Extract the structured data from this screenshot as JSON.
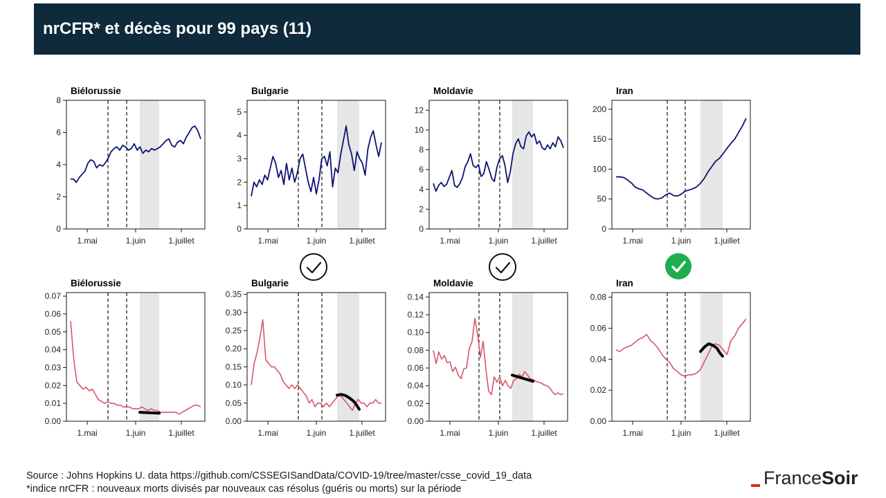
{
  "header": {
    "title": "nrCFR* et décès pour 99 pays (11)"
  },
  "footer": {
    "source": "Source : Johns Hopkins U. data https://github.com/CSSEGISandData/COVID-19/tree/master/csse_covid_19_data",
    "note": "*indice nrCFR : nouveaux morts divisés par nouveaux cas résolus (guéris ou morts) sur la période"
  },
  "logo": {
    "part1": "France",
    "part2": "Soir",
    "dash_color": "#e2251b"
  },
  "colors": {
    "title_bar": "#0e2a3b",
    "deaths_line": "#0a1470",
    "nrcfr_line": "#d95468",
    "trend_line": "#000000",
    "shade": "#e6e6e6",
    "check_green": "#1cae4f"
  },
  "icons": [
    "check-circle-outline-icon",
    "check-circle-outline-icon",
    "check-circle-green-icon"
  ],
  "chart_data": [
    {
      "type": "line",
      "title": "Biélorussie",
      "ylim": [
        0,
        8
      ],
      "yticks": [
        "0",
        "2",
        "4",
        "6",
        "8"
      ],
      "xticks": [
        "1.mai",
        "1.juin",
        "1.juillet"
      ],
      "x_range": [
        0,
        100
      ],
      "vlines": [
        30,
        43.5
      ],
      "shade": [
        53,
        67
      ],
      "values": [
        3.1,
        3.1,
        2.9,
        3.2,
        3.4,
        3.6,
        4.1,
        4.3,
        4.2,
        3.8,
        4.0,
        3.9,
        4.1,
        4.4,
        4.8,
        5.0,
        5.1,
        4.9,
        5.2,
        5.1,
        4.9,
        5.0,
        5.3,
        4.9,
        5.1,
        4.7,
        4.9,
        4.8,
        5.0,
        4.9,
        5.0,
        5.1,
        5.3,
        5.5,
        5.6,
        5.2,
        5.1,
        5.4,
        5.5,
        5.3,
        5.7,
        6.0,
        6.3,
        6.4,
        6.1,
        5.6
      ]
    },
    {
      "type": "line",
      "title": "Bulgarie",
      "ylim": [
        0,
        5.5
      ],
      "yticks": [
        "0",
        "1",
        "2",
        "3",
        "4",
        "5"
      ],
      "xticks": [
        "1.mai",
        "1.juin",
        "1.juillet"
      ],
      "x_range": [
        0,
        100
      ],
      "vlines": [
        37,
        54
      ],
      "shade": [
        65,
        81
      ],
      "values": [
        1.4,
        2.0,
        1.8,
        2.1,
        1.9,
        2.3,
        2.1,
        2.6,
        3.1,
        2.8,
        2.2,
        2.5,
        1.9,
        2.8,
        2.1,
        2.6,
        2.0,
        2.4,
        3.0,
        3.2,
        2.6,
        2.0,
        1.6,
        2.2,
        1.5,
        2.1,
        3.0,
        3.1,
        2.7,
        3.3,
        1.8,
        2.6,
        2.4,
        3.2,
        3.8,
        4.4,
        3.6,
        3.2,
        2.5,
        3.3,
        3.0,
        2.8,
        2.3,
        3.4,
        3.9,
        4.2,
        3.6,
        3.1,
        3.7
      ]
    },
    {
      "type": "line",
      "title": "Moldavie",
      "ylim": [
        0,
        13
      ],
      "yticks": [
        "0",
        "2",
        "4",
        "6",
        "8",
        "10",
        "12"
      ],
      "xticks": [
        "1.mai",
        "1.juin",
        "1.juillet"
      ],
      "x_range": [
        0,
        100
      ],
      "vlines": [
        36,
        51
      ],
      "shade": [
        60,
        75
      ],
      "values": [
        4.6,
        3.8,
        4.4,
        4.7,
        4.3,
        4.5,
        5.2,
        5.9,
        4.4,
        4.2,
        4.6,
        5.2,
        6.3,
        6.8,
        7.6,
        6.4,
        6.2,
        6.5,
        5.3,
        5.6,
        6.8,
        6.0,
        5.1,
        4.8,
        6.3,
        7.1,
        7.4,
        6.4,
        4.7,
        5.8,
        7.6,
        8.6,
        9.1,
        8.3,
        8.1,
        9.4,
        9.8,
        9.3,
        9.6,
        8.6,
        8.9,
        8.2,
        8.0,
        8.5,
        8.1,
        8.7,
        8.3,
        9.3,
        8.9,
        8.2
      ]
    },
    {
      "type": "line",
      "title": "Iran",
      "ylim": [
        0,
        215
      ],
      "yticks": [
        "0",
        "50",
        "100",
        "150",
        "200"
      ],
      "xticks": [
        "1.mai",
        "1.juin",
        "1.juillet"
      ],
      "x_range": [
        0,
        100
      ],
      "vlines": [
        40,
        53
      ],
      "shade": [
        64,
        80
      ],
      "values": [
        87,
        87,
        86,
        82,
        77,
        70,
        67,
        65,
        60,
        55,
        51,
        50,
        52,
        57,
        60,
        56,
        55,
        58,
        63,
        65,
        67,
        70,
        76,
        84,
        95,
        104,
        113,
        118,
        126,
        135,
        143,
        150,
        161,
        172,
        185
      ]
    },
    {
      "type": "line",
      "title": "Biélorussie",
      "ylim": [
        0,
        0.072
      ],
      "yticks": [
        "0.00",
        "0.01",
        "0.02",
        "0.03",
        "0.04",
        "0.05",
        "0.06",
        "0.07"
      ],
      "xticks": [
        "1.mai",
        "1.juin",
        "1.juillet"
      ],
      "x_range": [
        0,
        100
      ],
      "vlines": [
        30,
        43.5
      ],
      "shade": [
        53,
        67
      ],
      "values": [
        0.056,
        0.035,
        0.022,
        0.02,
        0.018,
        0.019,
        0.017,
        0.018,
        0.015,
        0.012,
        0.011,
        0.01,
        0.011,
        0.01,
        0.01,
        0.009,
        0.009,
        0.008,
        0.008,
        0.008,
        0.007,
        0.007,
        0.007,
        0.008,
        0.007,
        0.006,
        0.007,
        0.006,
        0.006,
        0.005,
        0.005,
        0.005,
        0.005,
        0.005,
        0.005,
        0.004,
        0.005,
        0.006,
        0.007,
        0.008,
        0.009,
        0.009,
        0.008
      ],
      "trend": {
        "x": [
          53,
          67
        ],
        "y": [
          0.005,
          0.0045
        ]
      }
    },
    {
      "type": "line",
      "title": "Bulgarie",
      "ylim": [
        0,
        0.355
      ],
      "yticks": [
        "0.00",
        "0.05",
        "0.10",
        "0.15",
        "0.20",
        "0.25",
        "0.30",
        "0.35"
      ],
      "xticks": [
        "1.mai",
        "1.juin",
        "1.juillet"
      ],
      "x_range": [
        0,
        100
      ],
      "vlines": [
        37,
        54
      ],
      "shade": [
        65,
        81
      ],
      "values": [
        0.1,
        0.16,
        0.19,
        0.23,
        0.28,
        0.17,
        0.16,
        0.15,
        0.15,
        0.14,
        0.13,
        0.11,
        0.1,
        0.09,
        0.1,
        0.09,
        0.1,
        0.09,
        0.08,
        0.07,
        0.05,
        0.06,
        0.04,
        0.05,
        0.05,
        0.04,
        0.05,
        0.04,
        0.05,
        0.06,
        0.07,
        0.07,
        0.06,
        0.05,
        0.04,
        0.03,
        0.05,
        0.06,
        0.05,
        0.05,
        0.04,
        0.05,
        0.05,
        0.06,
        0.05,
        0.05
      ],
      "trend": {
        "x": [
          65,
          68,
          71,
          74,
          77,
          79,
          81
        ],
        "y": [
          0.072,
          0.074,
          0.071,
          0.064,
          0.055,
          0.045,
          0.033
        ]
      }
    },
    {
      "type": "line",
      "title": "Moldavie",
      "ylim": [
        0,
        0.145
      ],
      "yticks": [
        "0.00",
        "0.02",
        "0.04",
        "0.06",
        "0.08",
        "0.10",
        "0.12",
        "0.14"
      ],
      "xticks": [
        "1.mai",
        "1.juin",
        "1.juillet"
      ],
      "x_range": [
        0,
        100
      ],
      "vlines": [
        36,
        51
      ],
      "shade": [
        60,
        75
      ],
      "values": [
        0.08,
        0.065,
        0.078,
        0.07,
        0.074,
        0.066,
        0.067,
        0.056,
        0.061,
        0.052,
        0.048,
        0.059,
        0.06,
        0.082,
        0.09,
        0.116,
        0.098,
        0.072,
        0.09,
        0.058,
        0.034,
        0.03,
        0.05,
        0.044,
        0.05,
        0.04,
        0.046,
        0.04,
        0.037,
        0.046,
        0.048,
        0.053,
        0.05,
        0.056,
        0.052,
        0.048,
        0.047,
        0.045,
        0.044,
        0.043,
        0.041,
        0.04,
        0.038,
        0.033,
        0.03,
        0.032,
        0.03,
        0.031
      ],
      "trend": {
        "x": [
          60,
          75
        ],
        "y": [
          0.052,
          0.045
        ]
      }
    },
    {
      "type": "line",
      "title": "Iran",
      "ylim": [
        0,
        0.083
      ],
      "yticks": [
        "0.00",
        "0.02",
        "0.04",
        "0.06",
        "0.08"
      ],
      "xticks": [
        "1.mai",
        "1.juin",
        "1.juillet"
      ],
      "x_range": [
        0,
        100
      ],
      "vlines": [
        40,
        53
      ],
      "shade": [
        64,
        80
      ],
      "values": [
        0.046,
        0.045,
        0.047,
        0.048,
        0.049,
        0.051,
        0.053,
        0.054,
        0.056,
        0.052,
        0.05,
        0.047,
        0.043,
        0.04,
        0.038,
        0.034,
        0.032,
        0.03,
        0.029,
        0.03,
        0.03,
        0.031,
        0.033,
        0.038,
        0.043,
        0.048,
        0.05,
        0.049,
        0.046,
        0.043,
        0.052,
        0.055,
        0.06,
        0.063,
        0.066
      ],
      "trend": {
        "x": [
          64,
          67,
          70,
          73,
          76,
          78,
          80
        ],
        "y": [
          0.045,
          0.048,
          0.05,
          0.049,
          0.047,
          0.044,
          0.042
        ]
      }
    }
  ]
}
